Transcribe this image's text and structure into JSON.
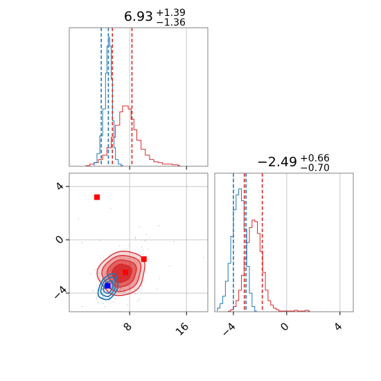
{
  "colors": {
    "model_a": "#1f77b4",
    "model_b": "#d62728",
    "marker_red": "#ff0000",
    "marker_blue": "#0000ff",
    "grid": "#c8c8c8",
    "frame": "#808080"
  },
  "chart_data": {
    "type": "corner",
    "parameters": [
      {
        "title_main": "6.93",
        "title_plus": "+1.39",
        "title_minus": "−1.36",
        "range": [
          -0.5,
          19.0
        ],
        "ticks": [
          8,
          16
        ],
        "tick_labels": [
          "8",
          "16"
        ],
        "quantiles": {
          "model_a": [
            4.0,
            5.0
          ],
          "model_b": [
            5.57,
            8.32
          ]
        },
        "hist_model_a": {
          "x": [
            3.0,
            3.4,
            3.8,
            4.2,
            4.6,
            4.8,
            5.0,
            5.2,
            5.4,
            5.6,
            5.8,
            6.0,
            6.4,
            6.8
          ],
          "y": [
            0.02,
            0.08,
            0.2,
            0.38,
            0.62,
            0.8,
            0.86,
            0.8,
            0.58,
            0.3,
            0.12,
            0.04,
            0.01,
            0.0
          ]
        },
        "hist_model_b": {
          "x": [
            1.8,
            2.4,
            3.0,
            3.6,
            4.2,
            4.8,
            5.4,
            6.0,
            6.6,
            7.0,
            7.4,
            7.8,
            8.2,
            8.6,
            9.0,
            9.6,
            10.2,
            10.8,
            11.4,
            12.0,
            12.6,
            13.2,
            14.0,
            14.8
          ],
          "y": [
            0.0,
            0.01,
            0.02,
            0.04,
            0.07,
            0.12,
            0.19,
            0.27,
            0.36,
            0.4,
            0.4,
            0.38,
            0.31,
            0.24,
            0.17,
            0.11,
            0.07,
            0.04,
            0.025,
            0.02,
            0.01,
            0.01,
            0.005,
            0.0
          ]
        }
      },
      {
        "title_main": "−2.49",
        "title_plus": "+0.66",
        "title_minus": "−0.70",
        "range": [
          -5.4,
          5.0
        ],
        "ticks": [
          -4,
          0,
          4
        ],
        "tick_labels": [
          "−4",
          "0",
          "4"
        ],
        "quantiles": {
          "model_a": [
            -4.0,
            -3.05
          ],
          "model_b": [
            -3.18,
            -1.83
          ]
        },
        "hist_model_a": {
          "x": [
            -5.2,
            -5.0,
            -4.8,
            -4.6,
            -4.4,
            -4.2,
            -4.0,
            -3.8,
            -3.6,
            -3.4,
            -3.2,
            -3.0,
            -2.8,
            -2.6,
            -2.4
          ],
          "y": [
            0.02,
            0.05,
            0.1,
            0.2,
            0.32,
            0.5,
            0.68,
            0.78,
            0.82,
            0.74,
            0.55,
            0.3,
            0.12,
            0.03,
            0.0
          ]
        },
        "hist_model_b": {
          "x": [
            -4.4,
            -4.2,
            -4.0,
            -3.8,
            -3.6,
            -3.4,
            -3.2,
            -3.0,
            -2.8,
            -2.6,
            -2.4,
            -2.2,
            -2.0,
            -1.8,
            -1.6,
            -1.4,
            -1.2,
            -1.0,
            -0.8,
            -0.6,
            0.6,
            0.8,
            1.4,
            1.6
          ],
          "y": [
            0.0,
            0.01,
            0.03,
            0.07,
            0.14,
            0.24,
            0.35,
            0.46,
            0.56,
            0.61,
            0.6,
            0.52,
            0.4,
            0.26,
            0.14,
            0.07,
            0.04,
            0.02,
            0.01,
            0.0,
            0.005,
            0.0,
            0.005,
            0.0
          ]
        }
      }
    ],
    "joint": {
      "model_a": {
        "center": [
          5.0,
          -3.55
        ],
        "sigma": [
          0.6,
          0.42
        ],
        "rho": 0.35
      },
      "model_b": {
        "center": [
          6.9,
          -2.5
        ],
        "sigma": [
          1.35,
          0.68
        ],
        "rho": 0.1
      },
      "truth_markers_red": [
        [
          3.4,
          3.2
        ],
        [
          7.4,
          -2.45
        ],
        [
          10.0,
          -1.45
        ]
      ],
      "truth_markers_blue": [
        [
          4.9,
          -3.45
        ]
      ]
    }
  }
}
